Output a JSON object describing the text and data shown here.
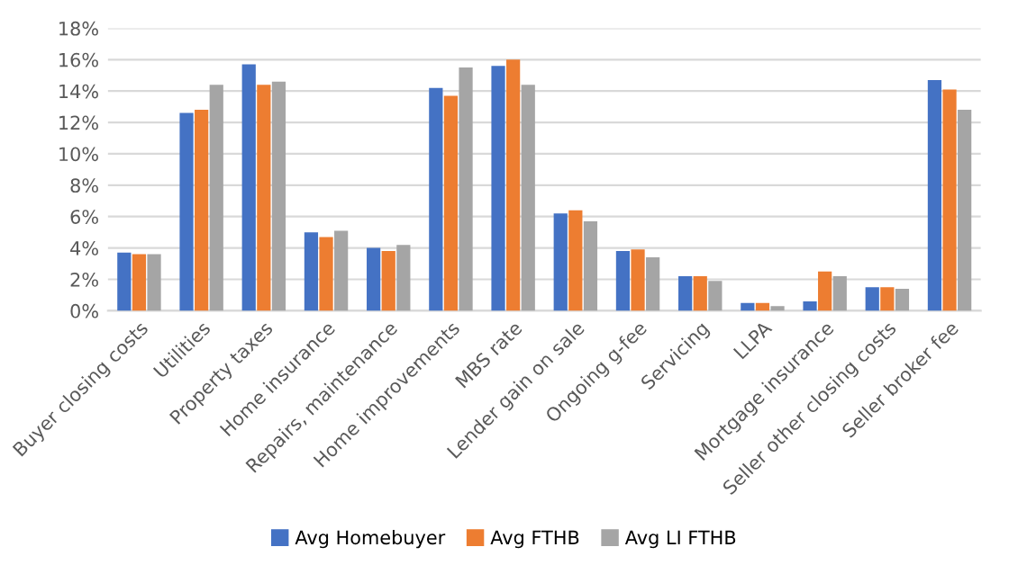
{
  "chart_data": {
    "type": "bar",
    "categories": [
      "Buyer closing costs",
      "Utilities",
      "Property taxes",
      "Home insurance",
      "Repairs, maintenance",
      "Home improvements",
      "MBS rate",
      "Lender gain on sale",
      "Ongoing g-fee",
      "Servicing",
      "LLPA",
      "Mortgage insurance",
      "Seller other closing costs",
      "Seller broker fee"
    ],
    "series": [
      {
        "name": "Avg Homebuyer",
        "color": "#4472c4",
        "values": [
          3.7,
          12.6,
          15.7,
          5.0,
          4.0,
          14.2,
          15.6,
          6.2,
          3.8,
          2.2,
          0.5,
          0.6,
          1.5,
          14.7
        ]
      },
      {
        "name": "Avg FTHB",
        "color": "#ed7d31",
        "values": [
          3.6,
          12.8,
          14.4,
          4.7,
          3.8,
          13.7,
          16.0,
          6.4,
          3.9,
          2.2,
          0.5,
          2.5,
          1.5,
          14.1
        ]
      },
      {
        "name": "Avg LI FTHB",
        "color": "#a5a5a5",
        "values": [
          3.6,
          14.4,
          14.6,
          5.1,
          4.2,
          15.5,
          14.4,
          5.7,
          3.4,
          1.9,
          0.3,
          2.2,
          1.4,
          12.8
        ]
      }
    ],
    "ylim": [
      0,
      18
    ],
    "yticks": [
      {
        "value": 0,
        "label": "0%"
      },
      {
        "value": 2,
        "label": "2%"
      },
      {
        "value": 4,
        "label": "4%"
      },
      {
        "value": 6,
        "label": "6%"
      },
      {
        "value": 8,
        "label": "8%"
      },
      {
        "value": 10,
        "label": "10%"
      },
      {
        "value": 12,
        "label": "12%"
      },
      {
        "value": 14,
        "label": "14%"
      },
      {
        "value": 16,
        "label": "16%"
      },
      {
        "value": 18,
        "label": "18%"
      }
    ],
    "grid": "y",
    "legend": "bottom"
  }
}
